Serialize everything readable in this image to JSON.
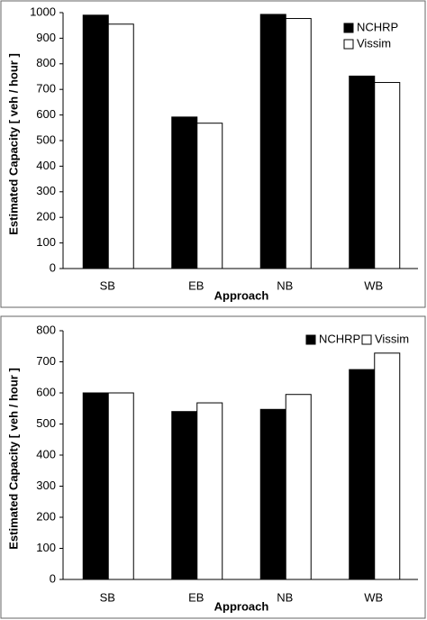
{
  "chart_data": [
    {
      "type": "bar",
      "x_label": "Approach",
      "y_label": "Estimated Capacity [ veh / hour ]",
      "categories": [
        "SB",
        "EB",
        "NB",
        "WB"
      ],
      "series": [
        {
          "name": "NCHRP",
          "color": "#000000",
          "values": [
            990,
            592,
            993,
            752
          ]
        },
        {
          "name": "Vissim",
          "color": "#ffffff",
          "values": [
            955,
            568,
            977,
            727
          ]
        }
      ],
      "ylim": [
        0,
        1000
      ],
      "yticks": [
        0,
        100,
        200,
        300,
        400,
        500,
        600,
        700,
        800,
        900,
        1000
      ],
      "grid": false,
      "legend": "upper right"
    },
    {
      "type": "bar",
      "x_label": "Approach",
      "y_label": "Estimated Capacity [ veh / hour ]",
      "categories": [
        "SB",
        "EB",
        "NB",
        "WB"
      ],
      "series": [
        {
          "name": "NCHRP",
          "color": "#000000",
          "values": [
            600,
            540,
            547,
            675
          ]
        },
        {
          "name": "Vissim",
          "color": "#ffffff",
          "values": [
            600,
            568,
            595,
            728
          ]
        }
      ],
      "ylim": [
        0,
        800
      ],
      "yticks": [
        0,
        100,
        200,
        300,
        400,
        500,
        600,
        700,
        800
      ],
      "grid": false,
      "legend": "upper right"
    }
  ]
}
